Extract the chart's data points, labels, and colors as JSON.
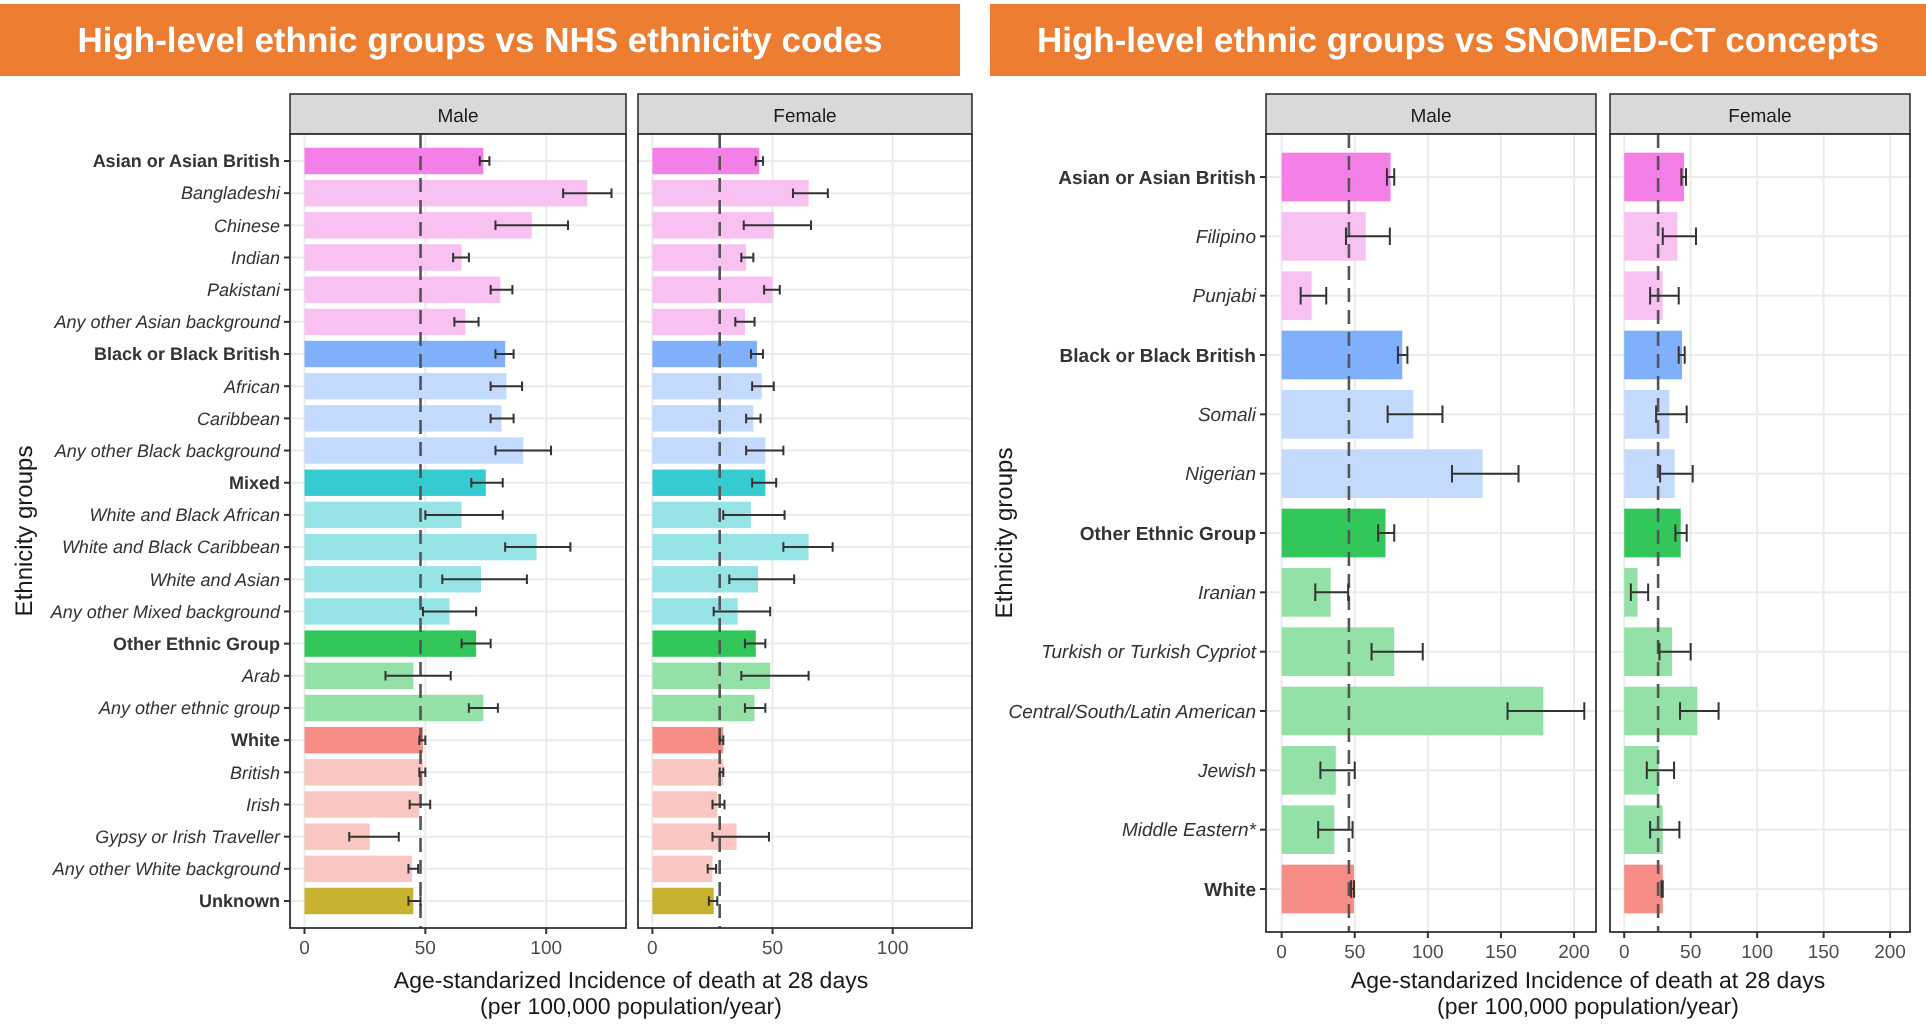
{
  "chart_data": [
    {
      "type": "bar",
      "orientation": "horizontal",
      "title": "High-level ethnic groups vs NHS ethnicity codes",
      "subtitle": "Male",
      "xlabel": "Age-standarized Incidence of death at 28 days\n(per 100,000 population/year)",
      "ylabel": "Ethnicity groups",
      "categories": [
        "Asian or Asian British",
        "Bangladeshi",
        "Chinese",
        "Indian",
        "Pakistani",
        "Any other Asian background",
        "Black or Black British",
        "African",
        "Caribbean",
        "Any other Black background",
        "Mixed",
        "White and Black African",
        "White and Black Caribbean",
        "White and Asian",
        "Any other Mixed background",
        "Other Ethnic Group",
        "Arab",
        "Any other ethnic group",
        "White",
        "British",
        "Irish",
        "Gypsy or Irish Traveller",
        "Any other White background",
        "Unknown"
      ],
      "xlim": [
        -6,
        133
      ],
      "xticks": [
        0,
        50,
        100
      ],
      "grid": true,
      "series": [
        {
          "values": [
            74,
            null,
            null,
            null,
            null,
            null,
            83,
            null,
            null,
            null,
            75,
            null,
            null,
            null,
            null,
            71,
            null,
            null,
            49,
            null,
            null,
            null,
            null,
            45
          ],
          "errors": [
            [
              72.5,
              76.5
            ],
            null,
            null,
            null,
            null,
            null,
            [
              79,
              86.5
            ],
            null,
            null,
            null,
            [
              69,
              82
            ],
            null,
            null,
            null,
            null,
            [
              65,
              77
            ],
            null,
            null,
            [
              47.5,
              50
            ],
            null,
            null,
            null,
            null,
            [
              43,
              48
            ]
          ],
          "colors": [
            "#f47fe6",
            null,
            null,
            null,
            null,
            null,
            "#80b0fb",
            null,
            null,
            null,
            "#35cbd1",
            null,
            null,
            null,
            null,
            "#33c65a",
            null,
            null,
            "#f78d85",
            null,
            null,
            null,
            null,
            "#c8b12f"
          ]
        },
        {
          "values": [
            null,
            117,
            94,
            65,
            81,
            66.5,
            null,
            83.5,
            81.5,
            90.5,
            null,
            65,
            96,
            73,
            60,
            null,
            45,
            74,
            null,
            49,
            47.5,
            27,
            44.5,
            null
          ],
          "errors": [
            null,
            [
              107,
              127
            ],
            [
              79,
              109
            ],
            [
              61.5,
              68
            ],
            [
              77,
              86
            ],
            [
              62,
              72
            ],
            null,
            [
              77,
              90
            ],
            [
              77,
              86.5
            ],
            [
              79,
              102
            ],
            null,
            [
              50,
              82
            ],
            [
              83,
              110
            ],
            [
              57,
              92
            ],
            [
              49,
              71
            ],
            null,
            [
              33.5,
              60.5
            ],
            [
              68,
              80
            ],
            null,
            [
              47.5,
              50
            ],
            [
              43.5,
              52
            ],
            [
              18.5,
              39
            ],
            [
              43,
              47
            ],
            null
          ],
          "colors": [
            null,
            "#f9c1f2",
            "#f9c1f2",
            "#f9c1f2",
            "#f9c1f2",
            "#f9c1f2",
            null,
            "#c3d9fd",
            "#c3d9fd",
            "#c3d9fd",
            null,
            "#97e4e7",
            "#97e4e7",
            "#97e4e7",
            "#97e4e7",
            null,
            "#93e1a6",
            "#93e1a6",
            null,
            "#f9c6c2",
            "#f9c6c2",
            "#f9c6c2",
            "#f9c6c2",
            null
          ]
        }
      ],
      "ref_lines": [
        {
          "axis": "x",
          "value": 48,
          "color": "#555555",
          "line_style": "dashed"
        }
      ]
    },
    {
      "type": "bar",
      "orientation": "horizontal",
      "subtitle": "Female",
      "categories": [
        null,
        null,
        null,
        null,
        null,
        null,
        null,
        null,
        null,
        null,
        null,
        null,
        null,
        null,
        null,
        null,
        null,
        null,
        null,
        null,
        null,
        null,
        null,
        null
      ],
      "xlim": [
        -6,
        133
      ],
      "xticks": [
        0,
        50,
        100
      ],
      "grid": true,
      "tick_labels": "x",
      "series": [
        {
          "values": [
            44.5,
            null,
            null,
            null,
            null,
            null,
            43.5,
            null,
            null,
            null,
            47,
            null,
            null,
            null,
            null,
            43,
            null,
            null,
            29.5,
            null,
            null,
            null,
            null,
            25.5
          ],
          "errors": [
            [
              43,
              46
            ],
            null,
            null,
            null,
            null,
            null,
            [
              41,
              46
            ],
            null,
            null,
            null,
            [
              41.5,
              51.5
            ],
            null,
            null,
            null,
            null,
            [
              38.5,
              47
            ],
            null,
            null,
            [
              28,
              29.5
            ],
            null,
            null,
            null,
            null,
            [
              23.5,
              27
            ]
          ],
          "colors": [
            "#f47fe6",
            null,
            null,
            null,
            null,
            null,
            "#80b0fb",
            null,
            null,
            null,
            "#35cbd1",
            null,
            null,
            null,
            null,
            "#33c65a",
            null,
            null,
            "#f78d85",
            null,
            null,
            null,
            null,
            "#c8b12f"
          ]
        },
        {
          "values": [
            null,
            65,
            50.5,
            39,
            50,
            38.5,
            null,
            45.5,
            42,
            47,
            null,
            41,
            65,
            44,
            35.5,
            null,
            49,
            42.5,
            null,
            29.5,
            27,
            35,
            25,
            null
          ],
          "errors": [
            null,
            [
              58.5,
              73
            ],
            [
              38,
              66
            ],
            [
              37,
              42
            ],
            [
              46.5,
              53
            ],
            [
              34.5,
              42.5
            ],
            null,
            [
              41.5,
              50.5
            ],
            [
              39,
              45
            ],
            [
              39,
              54.5
            ],
            null,
            [
              29.5,
              55
            ],
            [
              54.5,
              75
            ],
            [
              32,
              59
            ],
            [
              25.5,
              49
            ],
            null,
            [
              37,
              65
            ],
            [
              38.5,
              47
            ],
            null,
            [
              28,
              29.5
            ],
            [
              25,
              30
            ],
            [
              25,
              48.5
            ],
            [
              23,
              26.5
            ],
            null
          ],
          "colors": [
            null,
            "#f9c1f2",
            "#f9c1f2",
            "#f9c1f2",
            "#f9c1f2",
            "#f9c1f2",
            null,
            "#c3d9fd",
            "#c3d9fd",
            "#c3d9fd",
            null,
            "#97e4e7",
            "#97e4e7",
            "#97e4e7",
            "#97e4e7",
            null,
            "#93e1a6",
            "#93e1a6",
            null,
            "#f9c6c2",
            "#f9c6c2",
            "#f9c6c2",
            "#f9c6c2",
            null
          ]
        }
      ],
      "ref_lines": [
        {
          "axis": "x",
          "value": 28,
          "color": "#555555",
          "line_style": "dashed"
        }
      ]
    },
    {
      "type": "bar",
      "orientation": "horizontal",
      "title": "High-level ethnic groups vs SNOMED-CT concepts",
      "subtitle": "Male",
      "xlabel": "Age-standarized Incidence of death at 28 days\n(per 100,000 population/year)",
      "ylabel": "Ethnicity groups",
      "categories": [
        "Asian or Asian British",
        "Filipino",
        "Punjabi",
        "Black or Black British",
        "Somali",
        "Nigerian",
        "Other Ethnic Group",
        "Iranian",
        "Turkish or Turkish Cypriot",
        "Central/South/Latin American",
        "Jewish",
        "Middle Eastern*",
        "White"
      ],
      "xlim": [
        -10.7,
        215
      ],
      "xticks": [
        0,
        50,
        100,
        150,
        200
      ],
      "grid": true,
      "series": [
        {
          "values": [
            74.5,
            null,
            null,
            82.5,
            null,
            null,
            71,
            null,
            null,
            null,
            null,
            null,
            49.5
          ],
          "errors": [
            [
              72,
              77
            ],
            null,
            null,
            [
              79.5,
              86
            ],
            null,
            null,
            [
              66,
              77
            ],
            null,
            null,
            null,
            null,
            null,
            [
              47.5,
              49.5
            ]
          ],
          "colors": [
            "#f47fe6",
            null,
            null,
            "#80b0fb",
            null,
            null,
            "#33c65a",
            null,
            null,
            null,
            null,
            null,
            "#f78d85"
          ]
        },
        {
          "values": [
            null,
            57.5,
            20.5,
            null,
            90,
            137.5,
            null,
            33.5,
            77,
            179,
            37,
            36,
            null
          ],
          "errors": [
            null,
            [
              44,
              74
            ],
            [
              13,
              30.5
            ],
            null,
            [
              72.5,
              110
            ],
            [
              116.5,
              162
            ],
            null,
            [
              23,
              45.5
            ],
            [
              61.5,
              96.5
            ],
            [
              154.5,
              207
            ],
            [
              26.5,
              50
            ],
            [
              25,
              48.5
            ],
            null
          ],
          "colors": [
            null,
            "#f9c1f2",
            "#f9c1f2",
            null,
            "#c3d9fd",
            "#c3d9fd",
            null,
            "#93e1a6",
            "#93e1a6",
            "#93e1a6",
            "#93e1a6",
            "#93e1a6",
            null
          ]
        }
      ],
      "ref_lines": [
        {
          "axis": "x",
          "value": 46,
          "color": "#555555",
          "line_style": "dashed"
        }
      ]
    },
    {
      "type": "bar",
      "orientation": "horizontal",
      "subtitle": "Female",
      "categories": [
        null,
        null,
        null,
        null,
        null,
        null,
        null,
        null,
        null,
        null,
        null,
        null,
        null
      ],
      "xlim": [
        -10.7,
        215
      ],
      "xticks": [
        0,
        50,
        100,
        150,
        200
      ],
      "grid": true,
      "tick_labels": "x",
      "series": [
        {
          "values": [
            45,
            null,
            null,
            43.5,
            null,
            null,
            42.5,
            null,
            null,
            null,
            null,
            null,
            29
          ],
          "errors": [
            [
              43,
              46.5
            ],
            null,
            null,
            [
              41,
              45.5
            ],
            null,
            null,
            [
              38.5,
              47
            ],
            null,
            null,
            null,
            null,
            null,
            [
              28,
              29
            ]
          ],
          "colors": [
            "#f47fe6",
            null,
            null,
            "#80b0fb",
            null,
            null,
            "#33c65a",
            null,
            null,
            null,
            null,
            null,
            "#f78d85"
          ]
        },
        {
          "values": [
            null,
            40,
            29,
            null,
            34,
            38,
            null,
            10,
            36,
            55,
            26,
            29,
            null
          ],
          "errors": [
            null,
            [
              29,
              54
            ],
            [
              19.5,
              41
            ],
            null,
            [
              24,
              47
            ],
            [
              27,
              51.5
            ],
            null,
            [
              5,
              18
            ],
            [
              26.5,
              50
            ],
            [
              42,
              71
            ],
            [
              17,
              37.5
            ],
            [
              19.5,
              41.5
            ],
            null
          ],
          "colors": [
            null,
            "#f9c1f2",
            "#f9c1f2",
            null,
            "#c3d9fd",
            "#c3d9fd",
            null,
            "#93e1a6",
            "#93e1a6",
            "#93e1a6",
            "#93e1a6",
            "#93e1a6",
            null
          ]
        }
      ],
      "ref_lines": [
        {
          "axis": "x",
          "value": 25.5,
          "color": "#555555",
          "line_style": "dashed"
        }
      ]
    }
  ]
}
